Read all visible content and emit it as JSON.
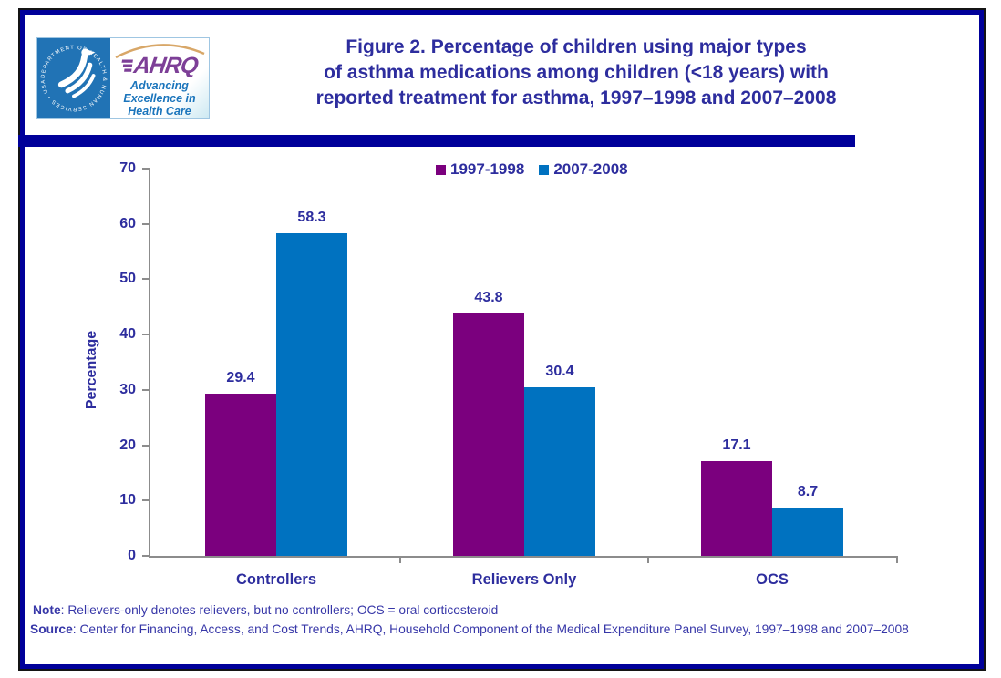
{
  "header": {
    "title_lines": [
      "Figure 2. Percentage of children using major types",
      "of asthma medications among children (<18 years) with",
      "reported treatment for asthma, 1997–1998 and 2007–2008"
    ],
    "logo": {
      "hhs_seal_text": "DEPARTMENT OF HEALTH & HUMAN SERVICES • USA",
      "ahrq_wordmark": "AHRQ",
      "tagline_lines": [
        "Advancing",
        "Excellence in",
        "Health Care"
      ]
    }
  },
  "chart_data": {
    "type": "bar",
    "title": "",
    "categories": [
      "Controllers",
      "Relievers Only",
      "OCS"
    ],
    "series": [
      {
        "name": "1997-1998",
        "color": "#7B007E",
        "values": [
          29.4,
          43.8,
          17.1
        ]
      },
      {
        "name": "2007-2008",
        "color": "#0072C0",
        "values": [
          58.3,
          30.4,
          8.7
        ]
      }
    ],
    "xlabel": "",
    "ylabel": "Percentage",
    "ylim": [
      0,
      70
    ],
    "ytick_step": 10,
    "grid": false,
    "legend_position": "top-center",
    "value_labels_shown": true
  },
  "footer": {
    "note_label": "Note",
    "note_text": ": Relievers-only denotes relievers, but no controllers; OCS = oral corticosteroid",
    "source_label": "Source",
    "source_text": ": Center for Financing, Access, and Cost Trends, AHRQ, Household Component of the Medical Expenditure Panel Survey, 1997–1998 and 2007–2008"
  },
  "colors": {
    "frame_navy": "#00009A",
    "title_text": "#2D2D9E",
    "note_text": "#3737A8",
    "axis_gray": "#8C8C8C"
  }
}
